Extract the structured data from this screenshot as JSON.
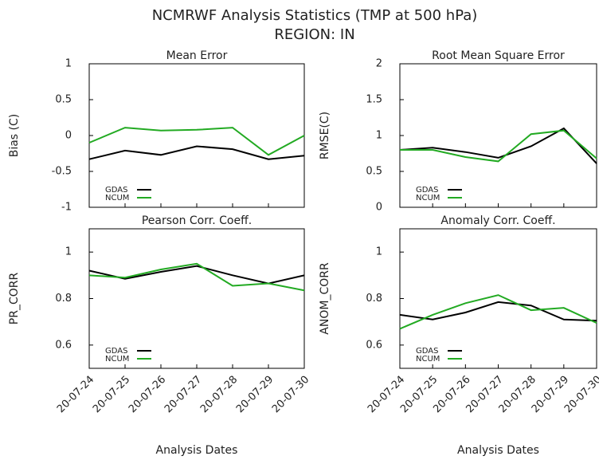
{
  "title": "NCMRWF Analysis Statistics (TMP at 500 hPa)",
  "subtitle": "REGION: IN",
  "chart_data": [
    {
      "type": "line",
      "title": "Mean Error",
      "ylabel": "Bias (C)",
      "series": [
        {
          "name": "GDAS",
          "color": "#000000",
          "values": [
            -0.33,
            -0.21,
            -0.27,
            -0.15,
            -0.19,
            -0.33,
            -0.28
          ]
        },
        {
          "name": "NCUM",
          "color": "#22aa22",
          "values": [
            -0.1,
            0.11,
            0.07,
            0.08,
            0.11,
            -0.27,
            0
          ]
        }
      ],
      "ylim": [
        -1,
        1
      ],
      "yticks": [
        -1,
        -0.5,
        0,
        0.5,
        1
      ],
      "legend": "lower left"
    },
    {
      "type": "line",
      "title": "Root Mean Square Error",
      "ylabel": "RMSE(C)",
      "series": [
        {
          "name": "GDAS",
          "color": "#000000",
          "values": [
            0.8,
            0.83,
            0.77,
            0.69,
            0.85,
            1.1,
            0.61
          ]
        },
        {
          "name": "NCUM",
          "color": "#22aa22",
          "values": [
            0.8,
            0.8,
            0.7,
            0.64,
            1.02,
            1.07,
            0.68
          ]
        }
      ],
      "ylim": [
        0,
        2
      ],
      "yticks": [
        0,
        0.5,
        1,
        1.5,
        2
      ],
      "legend": "lower left"
    },
    {
      "type": "line",
      "title": "Pearson Corr. Coeff.",
      "ylabel": "PR_CORR",
      "xlabel": "Analysis Dates",
      "categories": [
        "20-07-24",
        "20-07-25",
        "20-07-26",
        "20-07-27",
        "20-07-28",
        "20-07-29",
        "20-07-30"
      ],
      "series": [
        {
          "name": "GDAS",
          "color": "#000000",
          "values": [
            0.92,
            0.885,
            0.915,
            0.94,
            0.9,
            0.865,
            0.9
          ]
        },
        {
          "name": "NCUM",
          "color": "#22aa22",
          "values": [
            0.9,
            0.89,
            0.925,
            0.95,
            0.855,
            0.865,
            0.835
          ]
        }
      ],
      "ylim": [
        0.5,
        1.1
      ],
      "yticks": [
        0.6,
        0.8,
        1
      ],
      "legend": "lower left"
    },
    {
      "type": "line",
      "title": "Anomaly Corr. Coeff.",
      "ylabel": "ANOM_CORR",
      "xlabel": "Analysis Dates",
      "categories": [
        "20-07-24",
        "20-07-25",
        "20-07-26",
        "20-07-27",
        "20-07-28",
        "20-07-29",
        "20-07-30"
      ],
      "series": [
        {
          "name": "GDAS",
          "color": "#000000",
          "values": [
            0.73,
            0.71,
            0.74,
            0.785,
            0.77,
            0.71,
            0.705
          ]
        },
        {
          "name": "NCUM",
          "color": "#22aa22",
          "values": [
            0.67,
            0.73,
            0.78,
            0.815,
            0.75,
            0.76,
            0.695
          ]
        }
      ],
      "ylim": [
        0.5,
        1.1
      ],
      "yticks": [
        0.6,
        0.8,
        1
      ],
      "legend": "lower left"
    }
  ]
}
